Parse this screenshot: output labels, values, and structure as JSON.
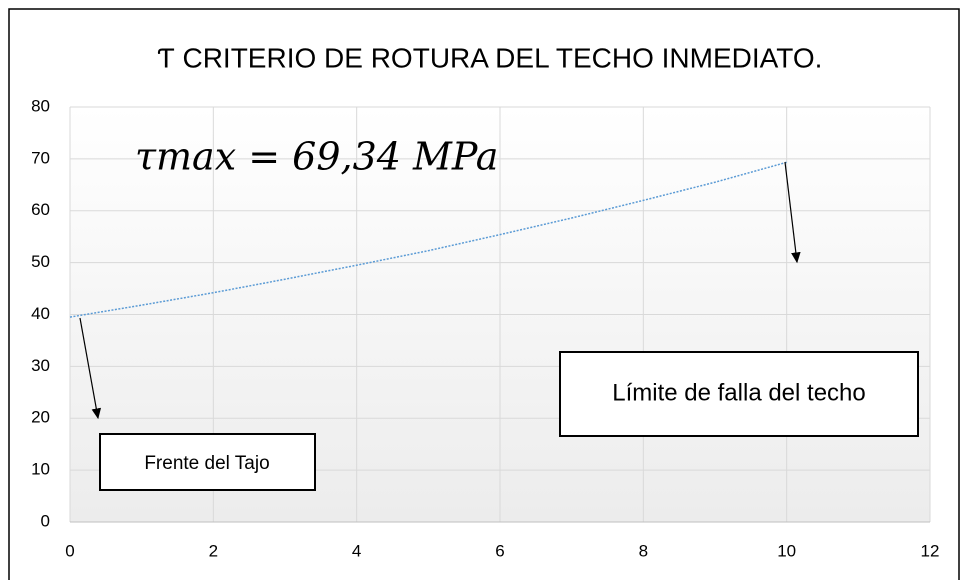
{
  "chart_data": {
    "type": "line",
    "title": "Ƭ CRITERIO DE ROTURA DEL TECHO INMEDIATO.",
    "x": [
      0,
      1,
      2,
      3,
      4,
      5,
      6,
      7,
      8,
      9,
      10
    ],
    "series": [
      {
        "name": "τ",
        "color": "#5b9bd5",
        "values": [
          39.5,
          41.8,
          44.2,
          46.8,
          49.5,
          52.3,
          55.4,
          58.6,
          62.0,
          65.5,
          69.34
        ]
      }
    ],
    "xlim": [
      0,
      12
    ],
    "xticks": [
      0,
      2,
      4,
      6,
      8,
      10,
      12
    ],
    "ylim": [
      0,
      80
    ],
    "yticks": [
      0,
      10,
      20,
      30,
      40,
      50,
      60,
      70,
      80
    ],
    "grid": true,
    "annotations": [
      "τmax = 69,34 MPa",
      "Límite de falla del techo",
      "Frente del Tajo"
    ]
  }
}
